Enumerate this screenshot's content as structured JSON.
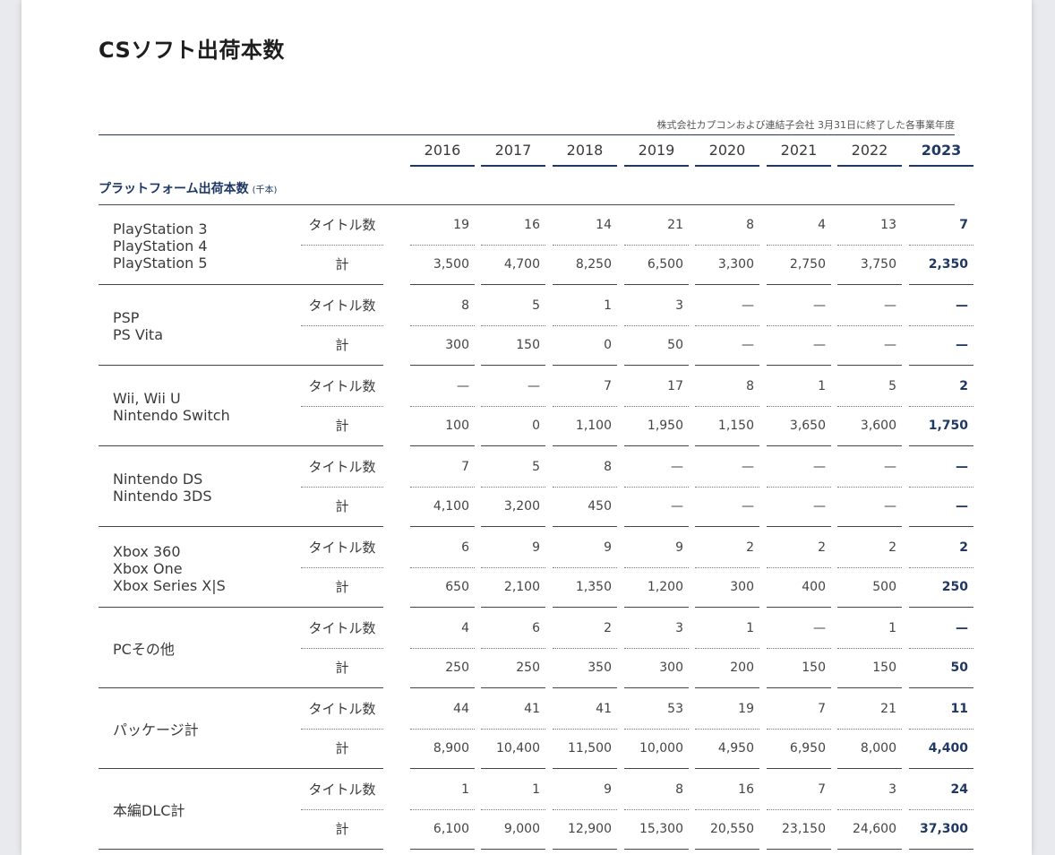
{
  "title": "CSソフト出荷本数",
  "note": "株式会社カプコンおよび連結子会社 3月31日に終了した各事業年度",
  "years": [
    "2016",
    "2017",
    "2018",
    "2019",
    "2020",
    "2021",
    "2022",
    "2023"
  ],
  "section": {
    "title": "プラットフォーム出荷本数",
    "unit": "(千本)"
  },
  "row_labels": {
    "titles": "タイトル数",
    "total": "計"
  },
  "groups": [
    {
      "platforms": [
        "PlayStation 3",
        "PlayStation 4",
        "PlayStation 5"
      ],
      "titles": [
        "19",
        "16",
        "14",
        "21",
        "8",
        "4",
        "13",
        "7"
      ],
      "total": [
        "3,500",
        "4,700",
        "8,250",
        "6,500",
        "3,300",
        "2,750",
        "3,750",
        "2,350"
      ]
    },
    {
      "platforms": [
        "PSP",
        "PS Vita"
      ],
      "titles": [
        "8",
        "5",
        "1",
        "3",
        "—",
        "—",
        "—",
        "—"
      ],
      "total": [
        "300",
        "150",
        "0",
        "50",
        "—",
        "—",
        "—",
        "—"
      ]
    },
    {
      "platforms": [
        "Wii, Wii U",
        "Nintendo Switch"
      ],
      "titles": [
        "—",
        "—",
        "7",
        "17",
        "8",
        "1",
        "5",
        "2"
      ],
      "total": [
        "100",
        "0",
        "1,100",
        "1,950",
        "1,150",
        "3,650",
        "3,600",
        "1,750"
      ]
    },
    {
      "platforms": [
        "Nintendo DS",
        "Nintendo 3DS"
      ],
      "titles": [
        "7",
        "5",
        "8",
        "—",
        "—",
        "—",
        "—",
        "—"
      ],
      "total": [
        "4,100",
        "3,200",
        "450",
        "—",
        "—",
        "—",
        "—",
        "—"
      ]
    },
    {
      "platforms": [
        "Xbox 360",
        "Xbox One",
        "Xbox Series X|S"
      ],
      "titles": [
        "6",
        "9",
        "9",
        "9",
        "2",
        "2",
        "2",
        "2"
      ],
      "total": [
        "650",
        "2,100",
        "1,350",
        "1,200",
        "300",
        "400",
        "500",
        "250"
      ]
    },
    {
      "platforms": [
        "PCその他"
      ],
      "titles": [
        "4",
        "6",
        "2",
        "3",
        "1",
        "—",
        "1",
        "—"
      ],
      "total": [
        "250",
        "250",
        "350",
        "300",
        "200",
        "150",
        "150",
        "50"
      ]
    },
    {
      "platforms": [
        "パッケージ計"
      ],
      "titles": [
        "44",
        "41",
        "41",
        "53",
        "19",
        "7",
        "21",
        "11"
      ],
      "total": [
        "8,900",
        "10,400",
        "11,500",
        "10,000",
        "4,950",
        "6,950",
        "8,000",
        "4,400"
      ]
    },
    {
      "platforms": [
        "本編DLC計"
      ],
      "titles": [
        "1",
        "1",
        "9",
        "8",
        "16",
        "7",
        "3",
        "24"
      ],
      "total": [
        "6,100",
        "9,000",
        "12,900",
        "15,300",
        "20,550",
        "23,150",
        "24,600",
        "37,300"
      ]
    }
  ]
}
